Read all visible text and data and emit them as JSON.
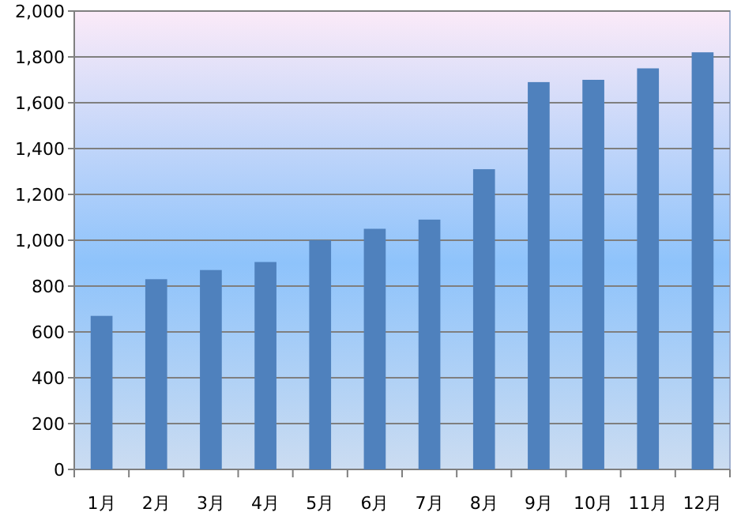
{
  "chart_data": {
    "type": "bar",
    "categories": [
      "1月",
      "2月",
      "3月",
      "4月",
      "5月",
      "6月",
      "7月",
      "8月",
      "9月",
      "10月",
      "11月",
      "12月"
    ],
    "values": [
      670,
      830,
      870,
      905,
      1000,
      1050,
      1090,
      1310,
      1690,
      1700,
      1750,
      1820
    ],
    "color": "#4f81bd",
    "ylim": [
      0,
      2000
    ],
    "yticks": [
      {
        "value": 0,
        "label": "0"
      },
      {
        "value": 200,
        "label": "200"
      },
      {
        "value": 400,
        "label": "400"
      },
      {
        "value": 600,
        "label": "600"
      },
      {
        "value": 800,
        "label": "800"
      },
      {
        "value": 1000,
        "label": "1,000"
      },
      {
        "value": 1200,
        "label": "1,200"
      },
      {
        "value": 1400,
        "label": "1,400"
      },
      {
        "value": 1600,
        "label": "1,600"
      },
      {
        "value": 1800,
        "label": "1,800"
      },
      {
        "value": 2000,
        "label": "2,000"
      }
    ],
    "grid": "y"
  }
}
